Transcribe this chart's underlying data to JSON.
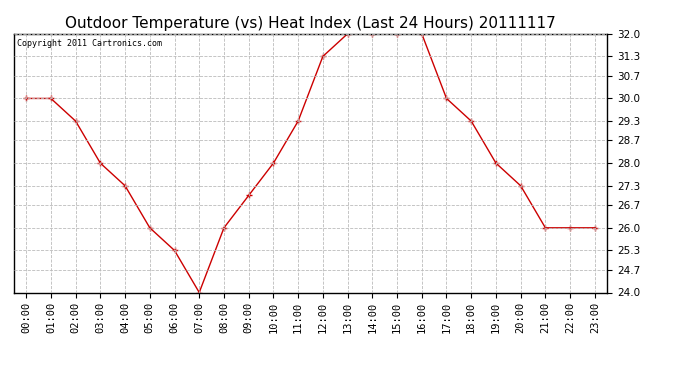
{
  "title": "Outdoor Temperature (vs) Heat Index (Last 24 Hours) 20111117",
  "copyright_text": "Copyright 2011 Cartronics.com",
  "x_labels": [
    "00:00",
    "01:00",
    "02:00",
    "03:00",
    "04:00",
    "05:00",
    "06:00",
    "07:00",
    "08:00",
    "09:00",
    "10:00",
    "11:00",
    "12:00",
    "13:00",
    "14:00",
    "15:00",
    "16:00",
    "17:00",
    "18:00",
    "19:00",
    "20:00",
    "21:00",
    "22:00",
    "23:00"
  ],
  "y_values": [
    30.0,
    30.0,
    29.3,
    28.0,
    27.3,
    26.0,
    25.3,
    24.0,
    26.0,
    27.0,
    28.0,
    29.3,
    31.3,
    32.0,
    32.0,
    32.0,
    32.0,
    30.0,
    29.3,
    28.0,
    27.3,
    26.0,
    26.0,
    26.0
  ],
  "line_color": "#cc0000",
  "marker": "+",
  "marker_size": 5,
  "ylim": [
    24.0,
    32.0
  ],
  "yticks": [
    24.0,
    24.7,
    25.3,
    26.0,
    26.7,
    27.3,
    28.0,
    28.7,
    29.3,
    30.0,
    30.7,
    31.3,
    32.0
  ],
  "background_color": "#ffffff",
  "plot_bg_color": "#ffffff",
  "grid_color": "#bbbbbb",
  "title_fontsize": 11,
  "copyright_fontsize": 6,
  "tick_fontsize": 7.5
}
